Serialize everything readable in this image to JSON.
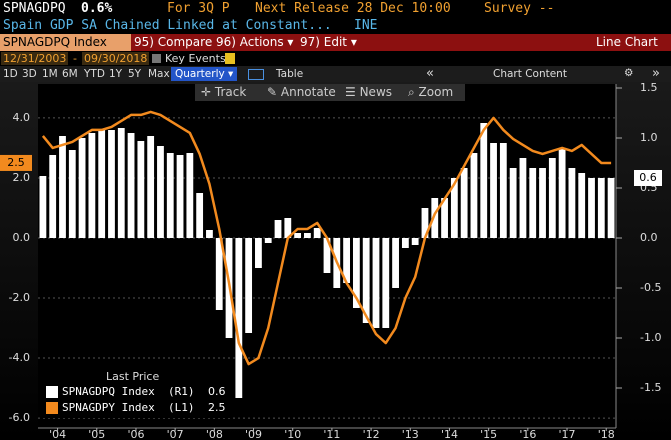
{
  "header": {
    "ticker": "SPNAGDPQ",
    "last": "0.6%",
    "period": "For 3Q P",
    "next_release": "Next Release 28 Dec 10:00",
    "survey": "Survey --",
    "description": "Spain GDP SA Chained Linked at Constant...",
    "source": "INE"
  },
  "menu": {
    "security": "SPNAGDPQ Index",
    "items": [
      "95) Compare",
      "96) Actions ▾",
      "97) Edit ▾"
    ],
    "view": "Line Chart"
  },
  "range": {
    "start": "12/31/2003",
    "end": "09/30/2018",
    "key_events": "Key Events"
  },
  "toolbar": {
    "periods": [
      "1D",
      "3D",
      "1M",
      "6M",
      "YTD",
      "1Y",
      "5Y",
      "Max"
    ],
    "frequency": "Quarterly ▾",
    "table": "Table",
    "chart_content": "Chart Content"
  },
  "chart_tools": [
    "Track",
    "Annotate",
    "News",
    "Zoom"
  ],
  "chart_data": {
    "type": "combo",
    "x": [
      2004,
      2004.25,
      2004.5,
      2004.75,
      2005,
      2005.25,
      2005.5,
      2005.75,
      2006,
      2006.25,
      2006.5,
      2006.75,
      2007,
      2007.25,
      2007.5,
      2007.75,
      2008,
      2008.25,
      2008.5,
      2008.75,
      2009,
      2009.25,
      2009.5,
      2009.75,
      2010,
      2010.25,
      2010.5,
      2010.75,
      2011,
      2011.25,
      2011.5,
      2011.75,
      2012,
      2012.25,
      2012.5,
      2012.75,
      2013,
      2013.25,
      2013.5,
      2013.75,
      2014,
      2014.25,
      2014.5,
      2014.75,
      2015,
      2015.25,
      2015.5,
      2015.75,
      2016,
      2016.25,
      2016.5,
      2016.75,
      2017,
      2017.25,
      2017.5,
      2017.75,
      2018,
      2018.25,
      2018.5
    ],
    "series": [
      {
        "name": "SPNAGDPQ Index  (R1)",
        "type": "bar",
        "axis": "y2",
        "color": "#ffffff",
        "last": 0.6,
        "values": [
          0.62,
          0.83,
          1.02,
          0.88,
          1.0,
          1.05,
          1.08,
          1.08,
          1.1,
          1.05,
          0.97,
          1.02,
          0.92,
          0.85,
          0.83,
          0.85,
          0.45,
          0.08,
          -0.72,
          -1.0,
          -1.6,
          -0.95,
          -0.3,
          -0.05,
          0.18,
          0.2,
          0.05,
          0.05,
          0.1,
          -0.35,
          -0.5,
          -0.45,
          -0.7,
          -0.85,
          -0.9,
          -0.9,
          -0.5,
          -0.1,
          -0.07,
          0.3,
          0.4,
          0.4,
          0.6,
          0.7,
          0.85,
          1.15,
          0.95,
          0.95,
          0.7,
          0.8,
          0.7,
          0.7,
          0.8,
          0.9,
          0.7,
          0.65,
          0.6,
          0.6,
          0.6
        ]
      },
      {
        "name": "SPNAGDPY Index  (L1)",
        "type": "line",
        "color": "#f28a1e",
        "last": 2.5,
        "values": [
          3.4,
          3.0,
          3.1,
          3.2,
          3.4,
          3.6,
          3.6,
          3.7,
          3.9,
          4.1,
          4.1,
          4.2,
          4.1,
          3.9,
          3.7,
          3.5,
          2.8,
          1.8,
          0.3,
          -1.5,
          -3.5,
          -4.2,
          -4.0,
          -3.0,
          -1.5,
          0.0,
          0.3,
          0.3,
          0.5,
          0.0,
          -0.8,
          -1.5,
          -2.0,
          -2.6,
          -3.2,
          -3.5,
          -3.0,
          -2.0,
          -1.3,
          0.0,
          0.8,
          1.3,
          1.8,
          2.4,
          3.0,
          3.6,
          4.0,
          3.6,
          3.3,
          3.1,
          2.9,
          2.8,
          2.9,
          3.0,
          2.9,
          3.1,
          2.8,
          2.5,
          2.5
        ]
      }
    ],
    "legend_title": "Last Price",
    "xlim": [
      2003.875,
      2018.625
    ],
    "xticks": [
      {
        "value": 2004.375,
        "label": "'04"
      },
      {
        "value": 2005.375,
        "label": "'05"
      },
      {
        "value": 2006.375,
        "label": "'06"
      },
      {
        "value": 2007.375,
        "label": "'07"
      },
      {
        "value": 2008.375,
        "label": "'08"
      },
      {
        "value": 2009.375,
        "label": "'09"
      },
      {
        "value": 2010.375,
        "label": "'10"
      },
      {
        "value": 2011.375,
        "label": "'11"
      },
      {
        "value": 2012.375,
        "label": "'12"
      },
      {
        "value": 2013.375,
        "label": "'13"
      },
      {
        "value": 2014.375,
        "label": "'14"
      },
      {
        "value": 2015.375,
        "label": "'15"
      },
      {
        "value": 2016.375,
        "label": "'16"
      },
      {
        "value": 2017.375,
        "label": "'17"
      },
      {
        "value": 2018.375,
        "label": "'18"
      }
    ],
    "ylim": [
      -6.33,
      5.13
    ],
    "yticks": [
      {
        "value": 4,
        "label": "4.0"
      },
      {
        "value": 2,
        "label": "2.0"
      },
      {
        "value": 0,
        "label": "0.0"
      },
      {
        "value": -2,
        "label": "-2.0"
      },
      {
        "value": -4,
        "label": "-4.0"
      },
      {
        "value": -6,
        "label": "-6.0"
      }
    ],
    "y2lim": [
      -1.9,
      1.54
    ],
    "y2ticks": [
      1.5,
      {
        "value": 1,
        "label": "1.0"
      },
      0.5,
      {
        "value": 0,
        "label": "0.0"
      },
      -0.5,
      {
        "value": -1,
        "label": "-1.0"
      },
      -1.5
    ],
    "grid": true
  }
}
